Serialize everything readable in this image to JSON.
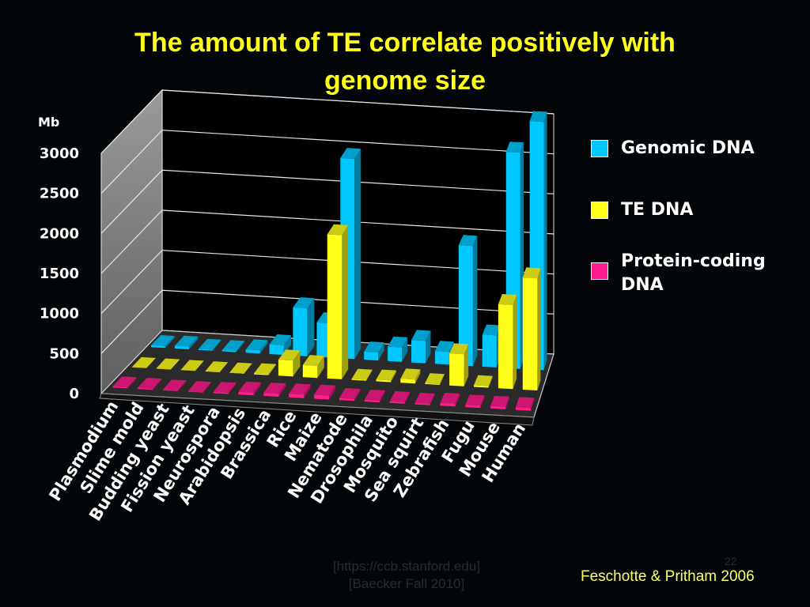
{
  "title_lines": [
    "The amount of TE correlate positively with",
    "genome size"
  ],
  "legend": [
    {
      "label": "Genomic DNA",
      "color": "#00c8ff"
    },
    {
      "label": "TE DNA",
      "color": "#ffff1a"
    },
    {
      "label": "Protein-coding DNA",
      "color": "#ff1c8c"
    }
  ],
  "credit": "Feschotte & Pritham 2006",
  "footer_faint": [
    "[https://ccb.stanford.edu]",
    "[Baecker Fall 2010]"
  ],
  "page_number": "22",
  "chart_data": {
    "type": "bar",
    "title": "The amount of TE correlate positively with genome size",
    "ylabel": "Mb",
    "ylim": [
      0,
      3000
    ],
    "yticks": [
      0,
      500,
      1000,
      1500,
      2000,
      2500,
      3000
    ],
    "categories": [
      "Plasmodium",
      "Slime mold",
      "Budding yeast",
      "Fission yeast",
      "Neurospora",
      "Arabidopsis",
      "Brassica",
      "Rice",
      "Maize",
      "Nematode",
      "Drosophila",
      "Mosquito",
      "Sea squirt",
      "Zebrafish",
      "Fugu",
      "Mouse",
      "Human"
    ],
    "series": [
      {
        "name": "Genomic DNA",
        "color": "#00c8ff",
        "values": [
          23,
          34,
          12,
          14,
          40,
          120,
          600,
          430,
          2500,
          100,
          180,
          280,
          160,
          1500,
          400,
          2700,
          3100
        ]
      },
      {
        "name": "TE DNA",
        "color": "#ffff1a",
        "values": [
          1,
          2,
          1,
          1,
          3,
          12,
          200,
          150,
          1800,
          12,
          20,
          50,
          10,
          400,
          20,
          1050,
          1400
        ]
      },
      {
        "name": "Protein-coding DNA",
        "color": "#ff1c8c",
        "values": [
          12,
          13,
          8,
          7,
          15,
          35,
          40,
          45,
          50,
          25,
          22,
          20,
          18,
          35,
          30,
          32,
          34
        ]
      }
    ],
    "grid": true,
    "legend_position": "right"
  }
}
